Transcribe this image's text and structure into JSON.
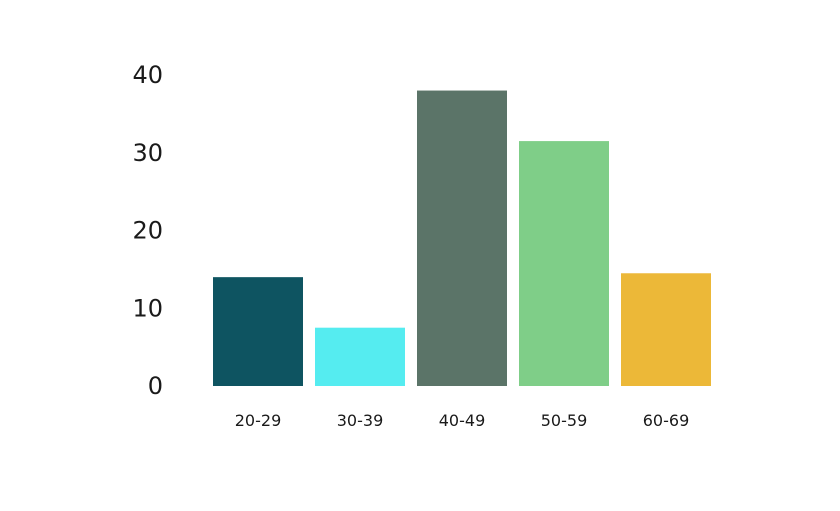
{
  "chart_data": {
    "type": "bar",
    "title": "",
    "xlabel": "",
    "ylabel": "",
    "categories": [
      "20-29",
      "30-39",
      "40-49",
      "50-59",
      "60-69"
    ],
    "values": [
      14,
      7.5,
      38,
      31.5,
      14.5
    ],
    "bar_colors": [
      "#0e5461",
      "#55ecf0",
      "#5b7468",
      "#7fce88",
      "#ecb838"
    ],
    "y_ticks": [
      0,
      10,
      20,
      30,
      40
    ],
    "ylim": [
      0,
      40
    ],
    "grid": false,
    "legend": "none"
  }
}
